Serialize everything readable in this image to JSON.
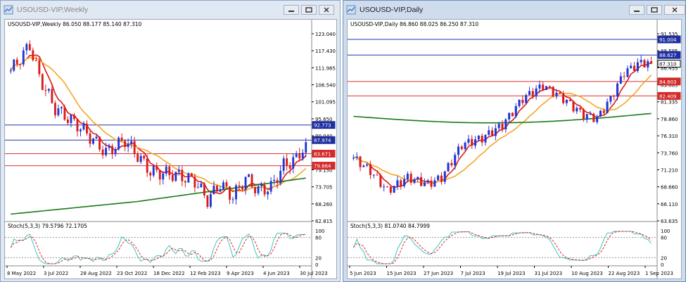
{
  "windows": [
    {
      "title": "USOUSD-VIP,Weekly",
      "chart_header": "USOUSD-VIP,Weekly  86.050 88.177 85.140 87.310",
      "stoch_header": "Stoch(5,3,3) 79.5796 72.1705",
      "price_axis": [
        "123.040",
        "117.430",
        "111.985",
        "106.540",
        "101.095",
        "95.650",
        "90.040",
        "84.595",
        "79.150",
        "73.705",
        "68.260",
        "62.815"
      ],
      "stoch_axis": [
        "100",
        "80",
        "20",
        "0"
      ],
      "time_axis": [
        "8 May 2022",
        "3 Jul 2022",
        "28 Aug 2022",
        "23 Oct 2022",
        "18 Dec 2022",
        "12 Feb 2023",
        "9 Apr 2023",
        "4 Jun 2023",
        "30 Jul 2023"
      ],
      "tags": [
        {
          "text": "92.773",
          "color": "#1f2fa0"
        },
        {
          "text": "87.974",
          "color": "#1f2fa0"
        },
        {
          "text": "83.671",
          "color": "#d42a2a"
        },
        {
          "text": "79.864",
          "color": "#d42a2a"
        }
      ],
      "ylim": [
        62.815,
        123.04
      ],
      "levels": [
        {
          "value": 92.773,
          "color": "#2233aa"
        },
        {
          "value": 87.974,
          "color": "#2233aa"
        },
        {
          "value": 83.671,
          "color": "#dd3333"
        },
        {
          "value": 79.864,
          "color": "#dd3333"
        }
      ]
    },
    {
      "title": "USOUSD-VIP,Daily",
      "chart_header": "USOUSD-VIP,Daily  86.860 88.025 86.250 87.310",
      "stoch_header": "Stoch(5,3,3) 81.0740 84.7999",
      "price_axis": [
        "91.535",
        "88.595",
        "86.455",
        "83.885",
        "81.335",
        "78.860",
        "76.310",
        "73.760",
        "71.210",
        "68.660",
        "66.110",
        "63.635"
      ],
      "stoch_axis": [
        "100",
        "80",
        "20",
        "0"
      ],
      "time_axis": [
        "5 Jun 2023",
        "15 Jun 2023",
        "27 Jun 2023",
        "7 Jul 2023",
        "19 Jul 2023",
        "31 Jul 2023",
        "10 Aug 2023",
        "22 Aug 2023",
        "1 Sep 2023"
      ],
      "tags": [
        {
          "text": "91.004",
          "color": "#1f2fa0"
        },
        {
          "text": "88.627",
          "color": "#1f2fa0"
        },
        {
          "text": "87.310",
          "color": "#000000"
        },
        {
          "text": "84.603",
          "color": "#d42a2a"
        },
        {
          "text": "82.409",
          "color": "#d42a2a"
        }
      ],
      "ylim": [
        63.635,
        92.5
      ],
      "levels": [
        {
          "value": 91.004,
          "color": "#2233aa"
        },
        {
          "value": 88.627,
          "color": "#2233aa"
        },
        {
          "value": 84.603,
          "color": "#dd3333"
        },
        {
          "value": 82.409,
          "color": "#dd3333"
        }
      ]
    }
  ],
  "colors": {
    "bull": "#1f37d6",
    "bear": "#d81c1c",
    "ma_fast": "#e01818",
    "ma_mid": "#f5a623",
    "ma_slow": "#1a7a1a",
    "stoch_main": "#3cc4c4",
    "stoch_signal": "#e02020"
  }
}
